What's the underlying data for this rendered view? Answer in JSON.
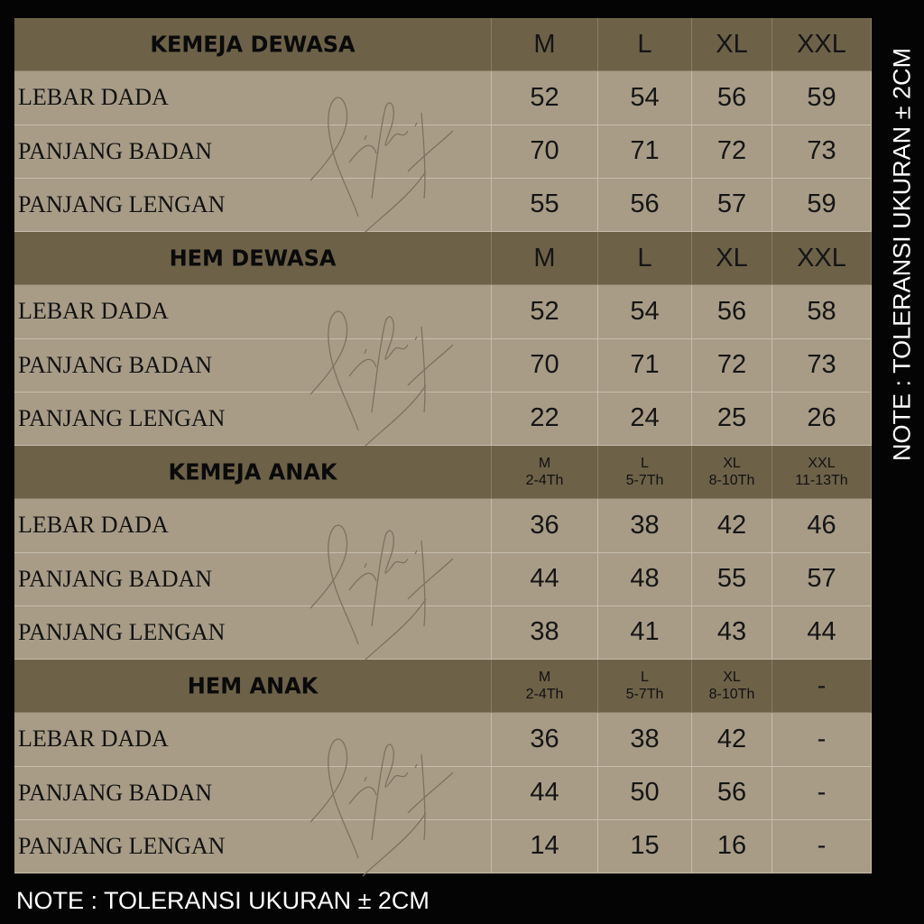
{
  "sections": [
    {
      "title": "KEMEJA DEWASA",
      "sizes": [
        {
          "size": "M"
        },
        {
          "size": "L"
        },
        {
          "size": "XL"
        },
        {
          "size": "XXL"
        }
      ],
      "rows": [
        {
          "label": "LEBAR DADA",
          "values": [
            "52",
            "54",
            "56",
            "59"
          ]
        },
        {
          "label": "PANJANG BADAN",
          "values": [
            "70",
            "71",
            "72",
            "73"
          ]
        },
        {
          "label": "PANJANG LENGAN",
          "values": [
            "55",
            "56",
            "57",
            "59"
          ]
        }
      ]
    },
    {
      "title": "HEM DEWASA",
      "sizes": [
        {
          "size": "M"
        },
        {
          "size": "L"
        },
        {
          "size": "XL"
        },
        {
          "size": "XXL"
        }
      ],
      "rows": [
        {
          "label": "LEBAR DADA",
          "values": [
            "52",
            "54",
            "56",
            "58"
          ]
        },
        {
          "label": "PANJANG BADAN",
          "values": [
            "70",
            "71",
            "72",
            "73"
          ]
        },
        {
          "label": "PANJANG LENGAN",
          "values": [
            "22",
            "24",
            "25",
            "26"
          ]
        }
      ]
    },
    {
      "title": "KEMEJA ANAK",
      "sizes": [
        {
          "size": "M",
          "age": "2-4Th"
        },
        {
          "size": "L",
          "age": "5-7Th"
        },
        {
          "size": "XL",
          "age": "8-10Th"
        },
        {
          "size": "XXL",
          "age": "11-13Th"
        }
      ],
      "rows": [
        {
          "label": "LEBAR DADA",
          "values": [
            "36",
            "38",
            "42",
            "46"
          ]
        },
        {
          "label": "PANJANG BADAN",
          "values": [
            "44",
            "48",
            "55",
            "57"
          ]
        },
        {
          "label": "PANJANG LENGAN",
          "values": [
            "38",
            "41",
            "43",
            "44"
          ]
        }
      ]
    },
    {
      "title": "HEM ANAK",
      "sizes": [
        {
          "size": "M",
          "age": "2-4Th"
        },
        {
          "size": "L",
          "age": "5-7Th"
        },
        {
          "size": "XL",
          "age": "8-10Th"
        },
        {
          "size": "-"
        }
      ],
      "rows": [
        {
          "label": "LEBAR DADA",
          "values": [
            "36",
            "38",
            "42",
            "-"
          ]
        },
        {
          "label": "PANJANG BADAN",
          "values": [
            "44",
            "50",
            "56",
            "-"
          ]
        },
        {
          "label": "PANJANG LENGAN",
          "values": [
            "14",
            "15",
            "16",
            "-"
          ]
        }
      ]
    }
  ],
  "note_bottom": "NOTE : TOLERANSI UKURAN ± 2CM",
  "note_right": "NOTE : TOLERANSI UKURAN ± 2CM",
  "watermark": "signature",
  "colors": {
    "header": "#6d6148",
    "body": "#a89c87",
    "background": "#040404",
    "text": "#111111",
    "note": "#ffffff"
  }
}
